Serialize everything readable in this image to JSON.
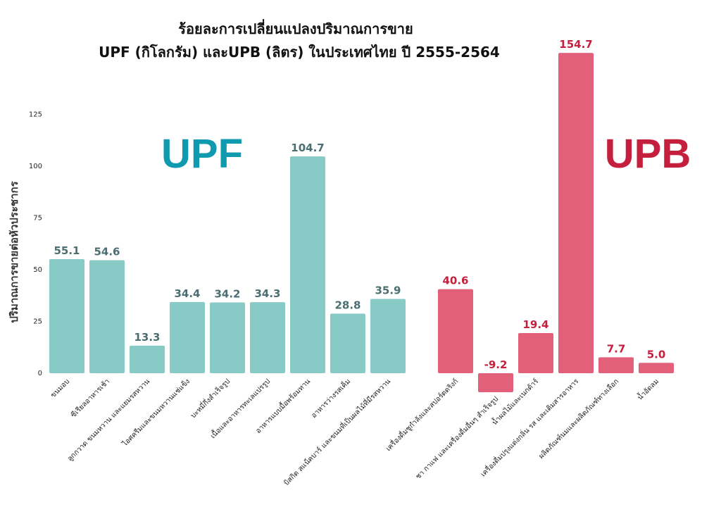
{
  "chart_data": {
    "type": "bar",
    "title_lines": [
      "ร้อยละการเปลี่ยนแปลงปริมาณการขาย",
      "UPF (กิโลกรัม) และUPB (ลิตร) ในประเทศไทย ปี 2555-2564"
    ],
    "ylabel": "ปริมาณการขายต่อหัวประชากร",
    "ylim": [
      0,
      150
    ],
    "yticks": [
      0,
      25,
      50,
      75,
      100,
      125
    ],
    "grid": false,
    "series": [
      {
        "name": "UPF",
        "color": "#88cac5",
        "label_color": "#4a6e72",
        "categories": [
          "ขนมอบ",
          "ซีเรียลอาหารเช้า",
          "ลูกกวาด ขนมหวาน และแยมรสหวาน",
          "ไอศครีมและขนมหวานแช่แข็ง",
          "บะหมี่กึ่งสำเร็จรูป",
          "เนื้อและอาหารทะเลแปรรูป",
          "อาหารแบบมื้อพร้อมทาน",
          "อาหารว่างรสเค็ม",
          "บิสกิต สแน็คบาร์ และขนมที่เป็นผลไม้ที่มีรสหวาน"
        ],
        "values": [
          55.1,
          54.6,
          13.3,
          34.4,
          34.2,
          34.3,
          104.7,
          28.8,
          35.9
        ]
      },
      {
        "name": "UPB",
        "color": "#e2607a",
        "label_color": "#c4203e",
        "categories": [
          "เครื่องดื่มชูกำลังและสปอร์ตดริงก์",
          "ชา กาแฟ และเครื่องดื่มอื่นๆ สำเร็จรูป",
          "น้ำผลไม้และเนกต้าร์",
          "เครื่องดื่มปรุงแต่งกลิ่น รส และเติมสารอาหาร",
          "ผลิตภัณฑ์นมและผลิตภัณฑ์ทางเลือก",
          "น้ำอัดลม"
        ],
        "values": [
          40.6,
          -9.2,
          19.4,
          154.7,
          7.7,
          5.0
        ]
      }
    ],
    "group_labels": [
      {
        "text": "UPF",
        "color": "#0f9aaf"
      },
      {
        "text": "UPB",
        "color": "#c4203e"
      }
    ]
  }
}
